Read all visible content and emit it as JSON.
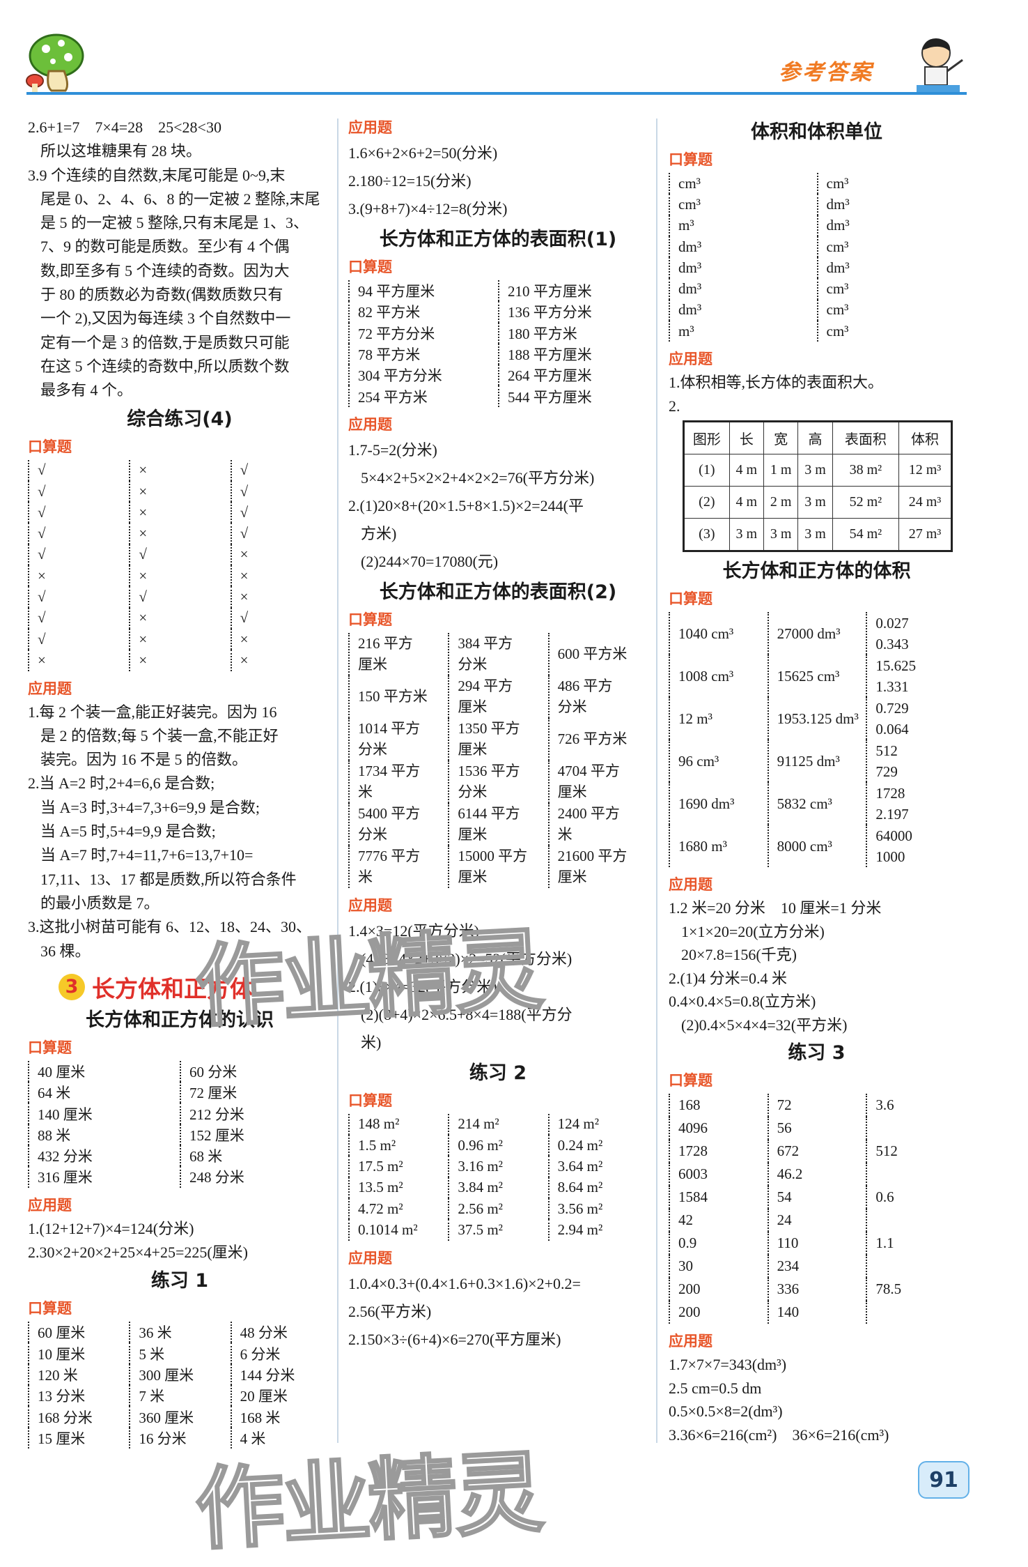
{
  "header": {
    "brand": "参考答案",
    "brand_color": "#f07a22",
    "rule_color": "#2f8fd8",
    "logo_icon": "mushroom-icon",
    "mascot_icon": "boy-teacher-icon"
  },
  "page_number": "91",
  "watermark": "作业精灵",
  "columns": {
    "left": [
      {
        "type": "text",
        "lines": [
          "2.6+1=7　7×4=28　25<28<30",
          "所以这堆糖果有 28 块。",
          "3.9 个连续的自然数,末尾可能是 0~9,末",
          "尾是 0、2、4、6、8 的一定被 2 整除,末尾",
          "是 5 的一定被 5 整除,只有末尾是 1、3、",
          "7、9 的数可能是质数。至少有 4 个偶",
          "数,即至多有 5 个连续的奇数。因为大",
          "于 80 的质数必为奇数(偶数质数只有",
          "一个 2),又因为每连续 3 个自然数中一",
          "定有一个是 3 的倍数,于是质数只可能",
          "在这 5 个连续的奇数中,所以质数个数",
          "最多有 4 个。"
        ]
      },
      {
        "type": "title",
        "text": "综合练习(4)"
      },
      {
        "type": "label",
        "text": "口算题"
      },
      {
        "type": "grid",
        "rowh": "r30",
        "rows": [
          [
            "√",
            "×",
            "√"
          ],
          [
            "√",
            "×",
            "√"
          ],
          [
            "√",
            "×",
            "√"
          ],
          [
            "√",
            "×",
            "√"
          ],
          [
            "√",
            "√",
            "×"
          ],
          [
            "×",
            "×",
            "×"
          ],
          [
            "√",
            "√",
            "×"
          ],
          [
            "√",
            "×",
            "√"
          ],
          [
            "√",
            "×",
            "×"
          ],
          [
            "×",
            "×",
            "×"
          ]
        ]
      },
      {
        "type": "label",
        "text": "应用题"
      },
      {
        "type": "text",
        "lines": [
          "1.每 2 个装一盒,能正好装完。因为 16",
          "是 2 的倍数;每 5 个装一盒,不能正好",
          "装完。因为 16 不是 5 的倍数。",
          "2.当 A=2 时,2+4=6,6 是合数;",
          "当 A=3 时,3+4=7,3+6=9,9 是合数;",
          "当 A=5 时,5+4=9,9 是合数;",
          "当 A=7 时,7+4=11,7+6=13,7+10=",
          "17,11、13、17 都是质数,所以符合条件",
          "的最小质数是 7。",
          "3.这批小树苗可能有 6、12、18、24、30、",
          "36 棵。"
        ]
      },
      {
        "type": "unit",
        "number": "3",
        "text": "长方体和正方体"
      },
      {
        "type": "title",
        "text": "长方体和正方体的认识"
      },
      {
        "type": "label",
        "text": "口算题"
      },
      {
        "type": "grid",
        "rowh": "r30",
        "rows": [
          [
            "40 厘米",
            "60 分米"
          ],
          [
            "64 米",
            "72 厘米"
          ],
          [
            "140 厘米",
            "212 分米"
          ],
          [
            "88 米",
            "152 厘米"
          ],
          [
            "432 分米",
            "68 米"
          ],
          [
            "316 厘米",
            "248 分米"
          ]
        ]
      },
      {
        "type": "label",
        "text": "应用题"
      },
      {
        "type": "text",
        "lines": [
          "1.(12+12+7)×4=124(分米)",
          "2.30×2+20×2+25×4+25=225(厘米)"
        ]
      },
      {
        "type": "title",
        "text": "练习 1"
      },
      {
        "type": "label",
        "text": "口算题"
      },
      {
        "type": "grid",
        "rowh": "r30",
        "rows": [
          [
            "60 厘米",
            "36 米",
            "48 分米"
          ],
          [
            "10 厘米",
            "5 米",
            "6 分米"
          ],
          [
            "120 米",
            "300 厘米",
            "144 分米"
          ],
          [
            "13 分米",
            "7 米",
            "20 厘米"
          ],
          [
            "168 分米",
            "360 厘米",
            "168 米"
          ],
          [
            "15 厘米",
            "16 分米",
            "4 米"
          ]
        ]
      }
    ],
    "middle": [
      {
        "type": "label",
        "text": "应用题"
      },
      {
        "type": "text",
        "lines": [
          "1.6×6+2×6+2=50(分米)",
          "2.180÷12=15(分米)",
          "3.(9+8+7)×4÷12=8(分米)"
        ]
      },
      {
        "type": "title",
        "text": "长方体和正方体的表面积(1)"
      },
      {
        "type": "label",
        "text": "口算题"
      },
      {
        "type": "grid",
        "rowh": "r30",
        "rows": [
          [
            "94 平方厘米",
            "210 平方厘米"
          ],
          [
            "82 平方米",
            "136 平方分米"
          ],
          [
            "72 平方分米",
            "180 平方米"
          ],
          [
            "78 平方米",
            "188 平方厘米"
          ],
          [
            "304 平方分米",
            "264 平方厘米"
          ],
          [
            "254 平方米",
            "544 平方厘米"
          ]
        ]
      },
      {
        "type": "label",
        "text": "应用题"
      },
      {
        "type": "text",
        "lines": [
          "1.7-5=2(分米)",
          "5×4×2+5×2×2+4×2×2=76(平方分米)",
          "2.(1)20×8+(20×1.5+8×1.5)×2=244(平",
          "方米)",
          "(2)244×70=17080(元)"
        ]
      },
      {
        "type": "title",
        "text": "长方体和正方体的表面积(2)"
      },
      {
        "type": "label",
        "text": "口算题"
      },
      {
        "type": "grid",
        "rowh": "r61",
        "rows": [
          [
            "216 平方\n厘米",
            "384 平方\n分米",
            "600 平方米"
          ],
          [
            "150 平方米",
            "294 平方\n厘米",
            "486 平方\n分米"
          ],
          [
            "1014 平方\n分米",
            "1350 平方\n厘米",
            "726 平方米"
          ],
          [
            "1734 平方\n米",
            "1536 平方\n分米",
            "4704 平方\n厘米"
          ],
          [
            "5400 平方\n分米",
            "6144 平方\n厘米",
            "2400 平方\n米"
          ],
          [
            "7776 平方\n米",
            "15000 平方\n厘米",
            "21600 平方\n厘米"
          ]
        ]
      },
      {
        "type": "label",
        "text": "应用题"
      },
      {
        "type": "text",
        "lines": [
          "1.4×3=12(平方分米)",
          "(4×3+4×2+3×2)×2=52(平方分米)",
          "2.(1)8×4=32(平方分米)",
          "(2)(8+4)×2×6.5+8×4=188(平方分",
          "米)"
        ]
      },
      {
        "type": "title",
        "text": "练习 2"
      },
      {
        "type": "label",
        "text": "口算题"
      },
      {
        "type": "grid",
        "rowh": "r30",
        "rows": [
          [
            "148 m²",
            "214 m²",
            "124 m²"
          ],
          [
            "1.5 m²",
            "0.96 m²",
            "0.24 m²"
          ],
          [
            "17.5 m²",
            "3.16 m²",
            "3.64 m²"
          ],
          [
            "13.5 m²",
            "3.84 m²",
            "8.64 m²"
          ],
          [
            "4.72 m²",
            "2.56 m²",
            "3.56 m²"
          ],
          [
            "0.1014 m²",
            "37.5 m²",
            "2.94 m²"
          ]
        ]
      },
      {
        "type": "label",
        "text": "应用题"
      },
      {
        "type": "text",
        "lines": [
          "1.0.4×0.3+(0.4×1.6+0.3×1.6)×2+0.2=",
          "2.56(平方米)",
          "2.150×3÷(6+4)×6=270(平方厘米)"
        ]
      }
    ],
    "right": [
      {
        "type": "title",
        "text": "体积和体积单位"
      },
      {
        "type": "label",
        "text": "口算题"
      },
      {
        "type": "grid",
        "rowh": "r30",
        "rows": [
          [
            "cm³",
            "cm³"
          ],
          [
            "cm³",
            "dm³"
          ],
          [
            "m³",
            "dm³"
          ],
          [
            "dm³",
            "cm³"
          ],
          [
            "dm³",
            "dm³"
          ],
          [
            "dm³",
            "cm³"
          ],
          [
            "dm³",
            "cm³"
          ],
          [
            "m³",
            "cm³"
          ]
        ]
      },
      {
        "type": "label",
        "text": "应用题"
      },
      {
        "type": "text",
        "lines": [
          "1.体积相等,长方体的表面积大。",
          "2."
        ]
      },
      {
        "type": "table",
        "header": [
          "图形",
          "长",
          "宽",
          "高",
          "表面积",
          "体积"
        ],
        "rows": [
          [
            "(1)",
            "4 m",
            "1 m",
            "3 m",
            "38 m²",
            "12 m³"
          ],
          [
            "(2)",
            "4 m",
            "2 m",
            "3 m",
            "52 m²",
            "24 m³"
          ],
          [
            "(3)",
            "3 m",
            "3 m",
            "3 m",
            "54 m²",
            "27 m³"
          ]
        ]
      },
      {
        "type": "title",
        "text": "长方体和正方体的体积"
      },
      {
        "type": "label",
        "text": "口算题"
      },
      {
        "type": "grid",
        "rowh": "r61",
        "rows": [
          [
            "1040 cm³",
            "27000 dm³",
            "0.027\n0.343"
          ],
          [
            "1008 cm³",
            "15625 cm³",
            "15.625\n1.331"
          ],
          [
            "12 m³",
            "1953.125 dm³",
            "0.729\n0.064"
          ],
          [
            "96 cm³",
            "91125 dm³",
            "512\n729"
          ],
          [
            "1690 dm³",
            "5832 cm³",
            "1728\n2.197"
          ],
          [
            "1680 m³",
            "8000 cm³",
            "64000\n1000"
          ]
        ]
      },
      {
        "type": "label",
        "text": "应用题"
      },
      {
        "type": "text",
        "lines": [
          "1.2 米=20 分米　10 厘米=1 分米",
          "1×1×20=20(立方分米)",
          "20×7.8=156(千克)",
          "2.(1)4 分米=0.4 米",
          "0.4×0.4×5=0.8(立方米)",
          "(2)0.4×5×4×4=32(平方米)"
        ]
      },
      {
        "type": "title",
        "text": "练习 3"
      },
      {
        "type": "label",
        "text": "口算题"
      },
      {
        "type": "grid",
        "rowh": "r33",
        "rows": [
          [
            "168",
            "72",
            "3.6"
          ],
          [
            "4096",
            "56",
            ""
          ],
          [
            "1728",
            "672",
            "512"
          ],
          [
            "6003",
            "46.2",
            ""
          ],
          [
            "1584",
            "54",
            "0.6"
          ],
          [
            "42",
            "24",
            ""
          ],
          [
            "0.9",
            "110",
            "1.1"
          ],
          [
            "30",
            "234",
            ""
          ],
          [
            "200",
            "336",
            "78.5"
          ],
          [
            "200",
            "140",
            ""
          ]
        ]
      },
      {
        "type": "label",
        "text": "应用题"
      },
      {
        "type": "text",
        "lines": [
          "1.7×7×7=343(dm³)",
          "2.5 cm=0.5 dm",
          "0.5×0.5×8=2(dm³)",
          "3.36×6=216(cm²)　36×6=216(cm³)"
        ]
      }
    ]
  }
}
